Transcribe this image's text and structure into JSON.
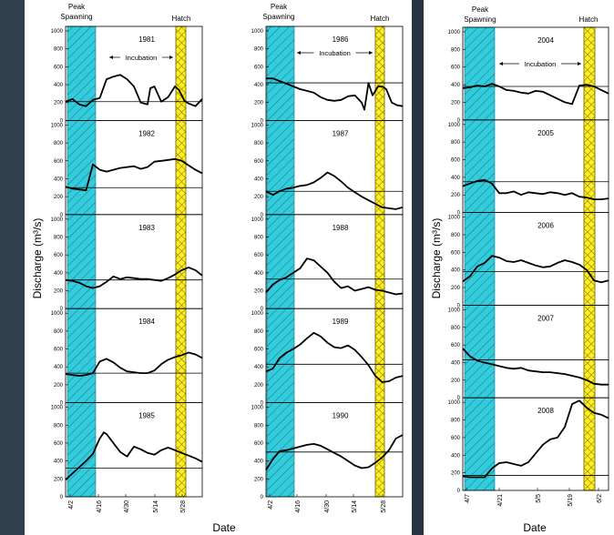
{
  "figure": {
    "ylabel": "Discharge (m³/s)",
    "xlabel": "Date"
  },
  "labels": {
    "peak": [
      "Peak",
      "Spawning"
    ],
    "hatch": "Hatch",
    "incubation": "Incubation"
  },
  "colors": {
    "spawning": "#33ccdd",
    "hatch": "#ffee22",
    "line": "#000000"
  },
  "chart_data": [
    {
      "type": "line",
      "group": "left",
      "ylabel": "Discharge (m³/s)",
      "ylim": [
        0,
        1000
      ],
      "yticks": [
        0,
        200,
        400,
        600,
        800,
        1000
      ],
      "xlabels": [
        "4/2",
        "4/16",
        "4/30",
        "5/14",
        "5/28"
      ],
      "panels": [
        {
          "year": "1981",
          "incubation": true,
          "reference": 210,
          "x": [
            0,
            0.05,
            0.1,
            0.15,
            0.2,
            0.25,
            0.3,
            0.35,
            0.4,
            0.45,
            0.5,
            0.55,
            0.6,
            0.62,
            0.65,
            0.7,
            0.75,
            0.8,
            0.83,
            0.87,
            0.9,
            0.95,
            1
          ],
          "y": [
            210,
            240,
            180,
            160,
            230,
            250,
            460,
            490,
            510,
            460,
            380,
            200,
            180,
            360,
            380,
            210,
            260,
            380,
            340,
            220,
            190,
            160,
            240
          ]
        },
        {
          "year": "1982",
          "incubation": false,
          "reference": 300,
          "x": [
            0,
            0.05,
            0.1,
            0.15,
            0.2,
            0.25,
            0.3,
            0.35,
            0.4,
            0.5,
            0.55,
            0.6,
            0.65,
            0.7,
            0.75,
            0.8,
            0.85,
            0.9,
            0.95,
            1
          ],
          "y": [
            310,
            290,
            280,
            270,
            560,
            500,
            480,
            500,
            520,
            540,
            510,
            530,
            590,
            600,
            610,
            620,
            600,
            550,
            500,
            460
          ]
        },
        {
          "year": "1983",
          "incubation": false,
          "reference": 320,
          "x": [
            0,
            0.05,
            0.1,
            0.15,
            0.2,
            0.25,
            0.3,
            0.35,
            0.4,
            0.45,
            0.5,
            0.55,
            0.6,
            0.65,
            0.7,
            0.75,
            0.8,
            0.85,
            0.9,
            0.95,
            1
          ],
          "y": [
            320,
            310,
            290,
            250,
            230,
            250,
            300,
            360,
            330,
            350,
            340,
            330,
            330,
            320,
            310,
            340,
            380,
            430,
            460,
            430,
            370
          ]
        },
        {
          "year": "1984",
          "incubation": false,
          "reference": 330,
          "x": [
            0,
            0.05,
            0.1,
            0.15,
            0.2,
            0.25,
            0.3,
            0.35,
            0.4,
            0.45,
            0.5,
            0.55,
            0.6,
            0.65,
            0.7,
            0.75,
            0.8,
            0.85,
            0.9,
            0.95,
            1
          ],
          "y": [
            320,
            310,
            300,
            310,
            330,
            460,
            490,
            450,
            390,
            350,
            340,
            330,
            330,
            360,
            430,
            480,
            510,
            530,
            560,
            540,
            500
          ]
        },
        {
          "year": "1985",
          "incubation": false,
          "reference": 320,
          "x": [
            0,
            0.05,
            0.1,
            0.15,
            0.2,
            0.25,
            0.28,
            0.3,
            0.35,
            0.4,
            0.45,
            0.5,
            0.55,
            0.6,
            0.65,
            0.7,
            0.75,
            0.8,
            0.85,
            0.9,
            0.95,
            1
          ],
          "y": [
            190,
            260,
            330,
            400,
            480,
            650,
            720,
            700,
            600,
            500,
            450,
            560,
            530,
            490,
            470,
            520,
            550,
            520,
            490,
            460,
            430,
            390
          ]
        }
      ]
    },
    {
      "type": "line",
      "group": "middle",
      "ylim": [
        0,
        1000
      ],
      "yticks": [
        0,
        200,
        400,
        600,
        800,
        1000
      ],
      "xlabels": [
        "4/2",
        "4/16",
        "4/30",
        "5/14",
        "5/28"
      ],
      "panels": [
        {
          "year": "1986",
          "incubation": true,
          "reference": 420,
          "x": [
            0,
            0.05,
            0.1,
            0.15,
            0.2,
            0.25,
            0.3,
            0.35,
            0.4,
            0.45,
            0.5,
            0.55,
            0.6,
            0.65,
            0.7,
            0.72,
            0.75,
            0.78,
            0.82,
            0.85,
            0.88,
            0.92,
            0.96,
            1
          ],
          "y": [
            470,
            470,
            440,
            410,
            380,
            350,
            330,
            310,
            260,
            230,
            220,
            230,
            270,
            280,
            200,
            120,
            420,
            280,
            380,
            380,
            350,
            200,
            170,
            160
          ]
        },
        {
          "year": "1987",
          "incubation": false,
          "reference": 260,
          "x": [
            0,
            0.05,
            0.1,
            0.15,
            0.2,
            0.25,
            0.3,
            0.35,
            0.4,
            0.45,
            0.5,
            0.55,
            0.6,
            0.65,
            0.7,
            0.75,
            0.8,
            0.85,
            0.9,
            0.95,
            1
          ],
          "y": [
            260,
            220,
            260,
            290,
            300,
            320,
            330,
            360,
            410,
            470,
            430,
            370,
            300,
            250,
            200,
            160,
            120,
            80,
            70,
            60,
            80
          ]
        },
        {
          "year": "1988",
          "incubation": false,
          "reference": 330,
          "x": [
            0,
            0.05,
            0.1,
            0.15,
            0.2,
            0.25,
            0.3,
            0.35,
            0.4,
            0.45,
            0.5,
            0.55,
            0.6,
            0.65,
            0.7,
            0.75,
            0.8,
            0.85,
            0.9,
            0.95,
            1
          ],
          "y": [
            180,
            270,
            320,
            350,
            400,
            450,
            560,
            540,
            470,
            400,
            300,
            230,
            250,
            200,
            220,
            240,
            210,
            200,
            180,
            160,
            170
          ]
        },
        {
          "year": "1989",
          "incubation": false,
          "reference": 430,
          "x": [
            0,
            0.05,
            0.1,
            0.15,
            0.2,
            0.25,
            0.3,
            0.35,
            0.4,
            0.45,
            0.5,
            0.55,
            0.6,
            0.65,
            0.7,
            0.75,
            0.8,
            0.85,
            0.9,
            0.95,
            1
          ],
          "y": [
            350,
            380,
            500,
            560,
            600,
            650,
            720,
            780,
            740,
            670,
            620,
            610,
            640,
            590,
            510,
            420,
            300,
            230,
            240,
            280,
            300
          ]
        },
        {
          "year": "1990",
          "incubation": false,
          "reference": 500,
          "x": [
            0,
            0.05,
            0.1,
            0.15,
            0.2,
            0.25,
            0.3,
            0.35,
            0.4,
            0.45,
            0.5,
            0.55,
            0.6,
            0.65,
            0.7,
            0.75,
            0.8,
            0.85,
            0.9,
            0.95,
            1
          ],
          "y": [
            300,
            420,
            510,
            520,
            540,
            560,
            580,
            590,
            570,
            530,
            490,
            450,
            400,
            350,
            320,
            330,
            380,
            440,
            520,
            650,
            690
          ]
        }
      ]
    },
    {
      "type": "line",
      "group": "right",
      "ylabel": "Discharge (m³/s)",
      "ylim": [
        0,
        1000
      ],
      "yticks": [
        0,
        200,
        400,
        600,
        800,
        1000
      ],
      "xlabels": [
        "4/7",
        "4/21",
        "5/5",
        "5/19",
        "6/2"
      ],
      "panels": [
        {
          "year": "2004",
          "incubation": true,
          "reference": 380,
          "x": [
            0,
            0.05,
            0.1,
            0.15,
            0.2,
            0.25,
            0.3,
            0.35,
            0.4,
            0.45,
            0.5,
            0.55,
            0.6,
            0.65,
            0.7,
            0.75,
            0.8,
            0.85,
            0.9,
            0.95,
            1
          ],
          "y": [
            360,
            370,
            390,
            380,
            410,
            380,
            340,
            330,
            310,
            300,
            330,
            320,
            280,
            240,
            200,
            180,
            390,
            400,
            380,
            340,
            300
          ]
        },
        {
          "year": "2005",
          "incubation": false,
          "reference": 350,
          "x": [
            0,
            0.05,
            0.1,
            0.15,
            0.2,
            0.25,
            0.3,
            0.35,
            0.4,
            0.45,
            0.5,
            0.55,
            0.6,
            0.65,
            0.7,
            0.75,
            0.8,
            0.85,
            0.9,
            0.95,
            1
          ],
          "y": [
            300,
            330,
            360,
            370,
            330,
            220,
            220,
            240,
            200,
            230,
            220,
            210,
            230,
            220,
            200,
            220,
            180,
            170,
            150,
            150,
            160
          ]
        },
        {
          "year": "2006",
          "incubation": false,
          "reference": 380,
          "x": [
            0,
            0.05,
            0.1,
            0.15,
            0.2,
            0.25,
            0.3,
            0.35,
            0.4,
            0.45,
            0.5,
            0.55,
            0.6,
            0.65,
            0.7,
            0.75,
            0.8,
            0.85,
            0.9,
            0.95,
            1
          ],
          "y": [
            270,
            330,
            440,
            480,
            560,
            540,
            500,
            490,
            510,
            480,
            450,
            430,
            440,
            480,
            510,
            490,
            460,
            400,
            280,
            260,
            280
          ]
        },
        {
          "year": "2007",
          "incubation": false,
          "reference": 430,
          "x": [
            0,
            0.05,
            0.1,
            0.15,
            0.2,
            0.25,
            0.3,
            0.35,
            0.4,
            0.45,
            0.5,
            0.55,
            0.6,
            0.65,
            0.7,
            0.75,
            0.8,
            0.85,
            0.9,
            0.95,
            1
          ],
          "y": [
            560,
            470,
            420,
            400,
            380,
            360,
            340,
            330,
            340,
            310,
            300,
            290,
            290,
            280,
            270,
            250,
            230,
            200,
            160,
            150,
            150
          ]
        },
        {
          "year": "2008",
          "incubation": false,
          "reference": 170,
          "x": [
            0,
            0.05,
            0.1,
            0.15,
            0.2,
            0.25,
            0.3,
            0.35,
            0.4,
            0.45,
            0.5,
            0.55,
            0.6,
            0.65,
            0.7,
            0.75,
            0.8,
            0.85,
            0.9,
            0.95,
            1
          ],
          "y": [
            160,
            150,
            150,
            150,
            250,
            310,
            320,
            300,
            280,
            320,
            420,
            520,
            580,
            600,
            720,
            980,
            1020,
            940,
            880,
            860,
            820
          ]
        }
      ]
    }
  ]
}
